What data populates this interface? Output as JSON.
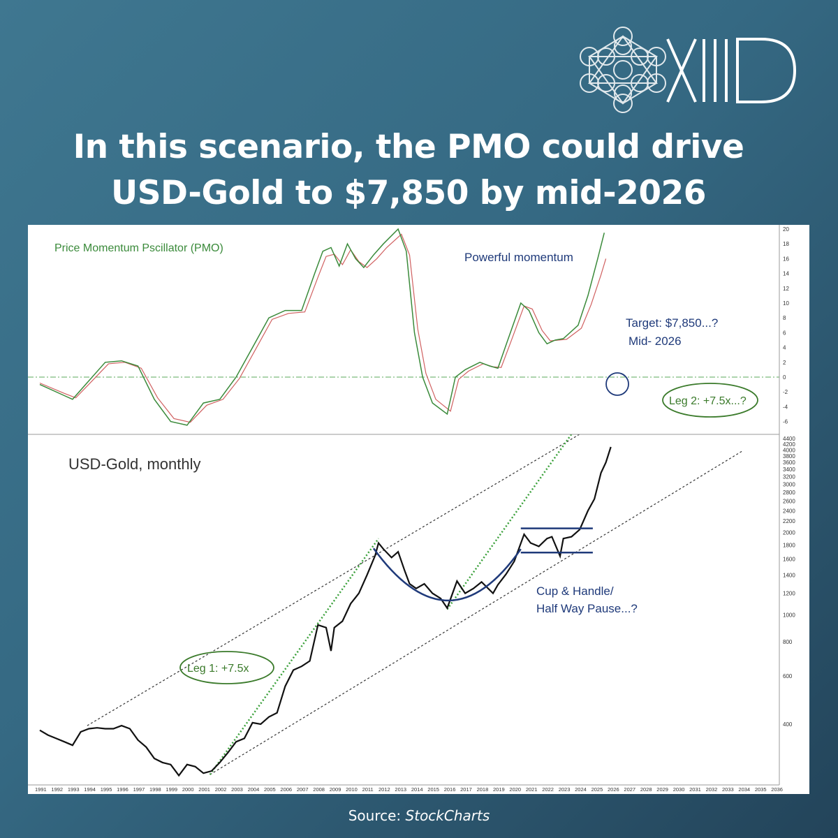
{
  "brand": {
    "name": "XIIID"
  },
  "headline": {
    "line1": "In this scenario, the PMO could drive",
    "line2": "USD-Gold to $7,850 by mid-2026"
  },
  "source": {
    "label": "Source:",
    "name": "StockCharts"
  },
  "chart_data": [
    {
      "type": "line",
      "title": "Price Momentum Pscillator (PMO)",
      "ylim": [
        -7,
        20
      ],
      "yticks": [
        20,
        18,
        16,
        14,
        12,
        10,
        8,
        6,
        4,
        2,
        0,
        -2,
        -4,
        -6
      ],
      "reference_line": 0,
      "annotations": [
        "Powerful momentum",
        "Target: $7,850...?",
        "Mid- 2026",
        "Leg 2: +7.5x...?"
      ],
      "series": [
        {
          "color": "#3a8a3a",
          "points": [
            [
              1991.0,
              -1
            ],
            [
              1992.5,
              -2.5
            ],
            [
              1993.0,
              -3
            ],
            [
              1994.0,
              -0.5
            ],
            [
              1995.0,
              2
            ],
            [
              1996.0,
              2.2
            ],
            [
              1997.0,
              1.5
            ],
            [
              1998.0,
              -3
            ],
            [
              1999.0,
              -6
            ],
            [
              2000.0,
              -6.5
            ],
            [
              2001.0,
              -3.5
            ],
            [
              2002.0,
              -3
            ],
            [
              2003.0,
              0
            ],
            [
              2004.0,
              4
            ],
            [
              2005.0,
              8
            ],
            [
              2006.0,
              9
            ],
            [
              2007.0,
              9
            ],
            [
              2007.8,
              14
            ],
            [
              2008.3,
              17
            ],
            [
              2008.8,
              17.5
            ],
            [
              2009.3,
              15
            ],
            [
              2009.8,
              18
            ],
            [
              2010.3,
              16
            ],
            [
              2010.8,
              14.8
            ],
            [
              2011.4,
              16.5
            ],
            [
              2012.0,
              18
            ],
            [
              2012.9,
              20
            ],
            [
              2013.4,
              17
            ],
            [
              2013.9,
              6
            ],
            [
              2014.4,
              0
            ],
            [
              2015.0,
              -3.5
            ],
            [
              2015.9,
              -5
            ],
            [
              2016.4,
              0
            ],
            [
              2017.0,
              1
            ],
            [
              2017.9,
              2
            ],
            [
              2018.5,
              1.5
            ],
            [
              2019.0,
              1.2
            ],
            [
              2019.6,
              5
            ],
            [
              2020.4,
              10
            ],
            [
              2020.9,
              9
            ],
            [
              2021.5,
              6
            ],
            [
              2022.0,
              4.5
            ],
            [
              2022.5,
              5
            ],
            [
              2023.0,
              5.2
            ],
            [
              2023.9,
              7
            ],
            [
              2024.5,
              11
            ],
            [
              2025.1,
              16
            ],
            [
              2025.5,
              19.5
            ]
          ]
        },
        {
          "color": "#d06060",
          "points": [
            [
              1991.0,
              -0.8
            ],
            [
              1992.5,
              -2.2
            ],
            [
              1993.2,
              -2.8
            ],
            [
              1994.2,
              -0.5
            ],
            [
              1995.2,
              1.8
            ],
            [
              1996.2,
              2
            ],
            [
              1997.2,
              1.2
            ],
            [
              1998.2,
              -2.8
            ],
            [
              1999.2,
              -5.6
            ],
            [
              2000.2,
              -6.1
            ],
            [
              2001.2,
              -3.8
            ],
            [
              2002.2,
              -3
            ],
            [
              2003.2,
              -0.2
            ],
            [
              2004.2,
              3.8
            ],
            [
              2005.2,
              7.8
            ],
            [
              2006.2,
              8.6
            ],
            [
              2007.2,
              8.8
            ],
            [
              2008.0,
              13.5
            ],
            [
              2008.5,
              16.3
            ],
            [
              2009.0,
              16.6
            ],
            [
              2009.5,
              15.2
            ],
            [
              2010.0,
              17.2
            ],
            [
              2010.5,
              15.6
            ],
            [
              2011.0,
              14.8
            ],
            [
              2011.6,
              16
            ],
            [
              2012.2,
              17.5
            ],
            [
              2013.1,
              19.3
            ],
            [
              2013.6,
              16.5
            ],
            [
              2014.1,
              6.5
            ],
            [
              2014.6,
              0.5
            ],
            [
              2015.2,
              -3
            ],
            [
              2016.1,
              -4.6
            ],
            [
              2016.6,
              -0.3
            ],
            [
              2017.2,
              0.8
            ],
            [
              2018.1,
              1.8
            ],
            [
              2018.7,
              1.4
            ],
            [
              2019.2,
              1.3
            ],
            [
              2019.8,
              4.8
            ],
            [
              2020.6,
              9.6
            ],
            [
              2021.1,
              9.2
            ],
            [
              2021.7,
              6.3
            ],
            [
              2022.2,
              4.9
            ],
            [
              2022.7,
              5
            ],
            [
              2023.2,
              5.1
            ],
            [
              2024.1,
              6.6
            ],
            [
              2024.7,
              9.8
            ],
            [
              2025.3,
              13.8
            ],
            [
              2025.6,
              16
            ]
          ]
        }
      ]
    },
    {
      "type": "line",
      "title": "USD-Gold, monthly",
      "yscale": "log",
      "ylim": [
        250,
        4500
      ],
      "yticks": [
        4400,
        4200,
        4000,
        3800,
        3600,
        3400,
        3200,
        3000,
        2800,
        2600,
        2400,
        2200,
        2000,
        1800,
        1600,
        1400,
        1200,
        1000,
        800,
        600,
        400
      ],
      "x_tick_labels": [
        "1991",
        "1992",
        "1993",
        "1994",
        "1995",
        "1996",
        "1997",
        "1998",
        "1999",
        "2000",
        "2001",
        "2002",
        "2003",
        "2004",
        "2005",
        "2006",
        "2007",
        "2008",
        "2009",
        "2010",
        "2011",
        "2012",
        "2013",
        "2014",
        "2015",
        "2016",
        "2017",
        "2018",
        "2019",
        "2020",
        "2021",
        "2022",
        "2023",
        "2024",
        "2025",
        "2026",
        "2027",
        "2028",
        "2029",
        "2030",
        "2031",
        "2032",
        "2033",
        "2034",
        "2035",
        "2036"
      ],
      "annotations": [
        "Leg 1: +7.5x",
        "Cup & Handle/",
        "Half Way Pause...?"
      ],
      "series": [
        {
          "name": "Price",
          "color": "#111111",
          "points": [
            [
              1991.0,
              380
            ],
            [
              1991.5,
              365
            ],
            [
              1992.0,
              355
            ],
            [
              1992.5,
              345
            ],
            [
              1993.0,
              335
            ],
            [
              1993.5,
              375
            ],
            [
              1994.0,
              385
            ],
            [
              1994.5,
              388
            ],
            [
              1995.0,
              385
            ],
            [
              1995.5,
              385
            ],
            [
              1996.0,
              395
            ],
            [
              1996.5,
              385
            ],
            [
              1997.0,
              350
            ],
            [
              1997.5,
              330
            ],
            [
              1998.0,
              300
            ],
            [
              1998.5,
              290
            ],
            [
              1999.0,
              285
            ],
            [
              1999.5,
              260
            ],
            [
              2000.0,
              285
            ],
            [
              2000.5,
              280
            ],
            [
              2001.0,
              265
            ],
            [
              2001.5,
              270
            ],
            [
              2002.0,
              290
            ],
            [
              2002.5,
              315
            ],
            [
              2003.0,
              345
            ],
            [
              2003.5,
              355
            ],
            [
              2004.0,
              405
            ],
            [
              2004.5,
              400
            ],
            [
              2005.0,
              425
            ],
            [
              2005.5,
              440
            ],
            [
              2006.0,
              550
            ],
            [
              2006.5,
              630
            ],
            [
              2007.0,
              650
            ],
            [
              2007.5,
              680
            ],
            [
              2008.0,
              920
            ],
            [
              2008.5,
              900
            ],
            [
              2008.8,
              740
            ],
            [
              2009.0,
              900
            ],
            [
              2009.5,
              950
            ],
            [
              2010.0,
              1100
            ],
            [
              2010.5,
              1200
            ],
            [
              2011.0,
              1400
            ],
            [
              2011.5,
              1650
            ],
            [
              2011.7,
              1830
            ],
            [
              2012.0,
              1740
            ],
            [
              2012.5,
              1620
            ],
            [
              2012.9,
              1700
            ],
            [
              2013.3,
              1450
            ],
            [
              2013.6,
              1300
            ],
            [
              2014.0,
              1250
            ],
            [
              2014.5,
              1300
            ],
            [
              2015.0,
              1200
            ],
            [
              2015.5,
              1150
            ],
            [
              2015.9,
              1060
            ],
            [
              2016.5,
              1330
            ],
            [
              2017.0,
              1200
            ],
            [
              2017.5,
              1250
            ],
            [
              2018.0,
              1320
            ],
            [
              2018.7,
              1200
            ],
            [
              2019.0,
              1290
            ],
            [
              2019.5,
              1410
            ],
            [
              2020.0,
              1570
            ],
            [
              2020.6,
              1970
            ],
            [
              2021.0,
              1830
            ],
            [
              2021.5,
              1780
            ],
            [
              2022.0,
              1900
            ],
            [
              2022.3,
              1930
            ],
            [
              2022.8,
              1640
            ],
            [
              2023.0,
              1900
            ],
            [
              2023.5,
              1930
            ],
            [
              2024.0,
              2050
            ],
            [
              2024.5,
              2400
            ],
            [
              2024.9,
              2650
            ],
            [
              2025.3,
              3300
            ],
            [
              2025.6,
              3600
            ],
            [
              2025.9,
              4100
            ]
          ]
        },
        {
          "name": "Upper channel",
          "color": "#333333",
          "dashed": true,
          "points": [
            [
              1993.9,
              395
            ],
            [
              2026.3,
              5500
            ]
          ]
        },
        {
          "name": "Lower channel",
          "color": "#333333",
          "dashed": true,
          "points": [
            [
              2001.4,
              262
            ],
            [
              2033.9,
              3950
            ]
          ]
        },
        {
          "name": "Leg 1 trend",
          "color": "#3aa03a",
          "dotted": true,
          "points": [
            [
              2001.4,
              262
            ],
            [
              2011.7,
              1900
            ]
          ]
        },
        {
          "name": "Leg 2 trend",
          "color": "#3aa03a",
          "dotted": true,
          "points": [
            [
              2015.9,
              1050
            ],
            [
              2026.3,
              7850
            ]
          ]
        }
      ]
    }
  ]
}
